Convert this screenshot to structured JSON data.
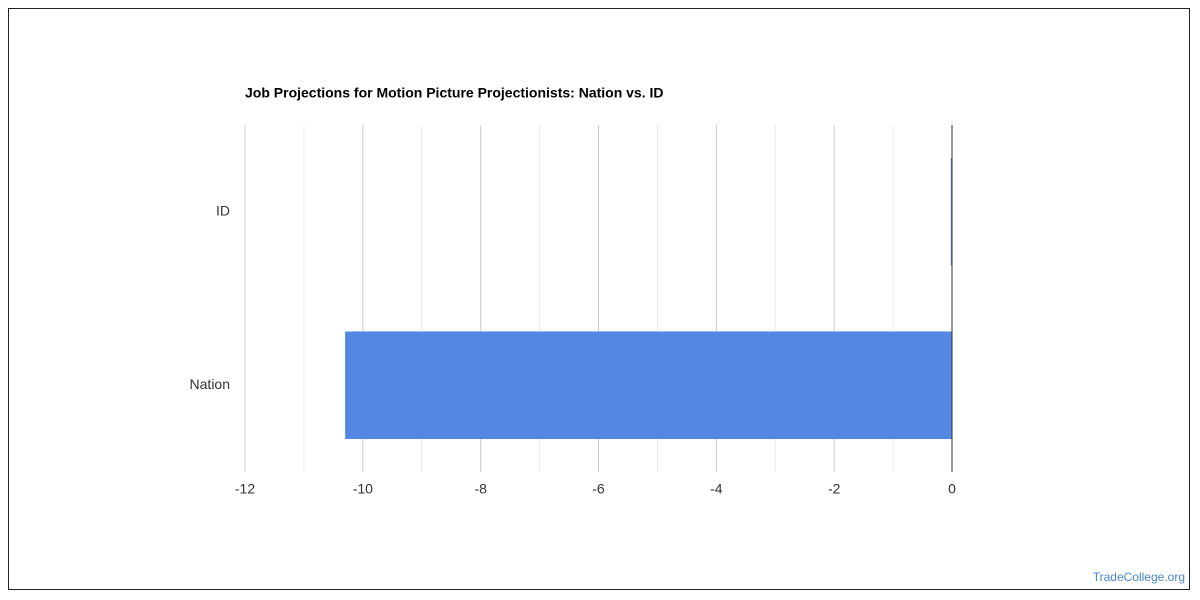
{
  "chart_data": {
    "type": "barh",
    "title": "Job Projections for Motion Picture Projectionists: Nation vs. ID",
    "categories": [
      "ID",
      "Nation"
    ],
    "values": [
      -0.02,
      -10.3
    ],
    "color": "#5387e3",
    "xlim": [
      -12,
      0
    ],
    "xticks": [
      -12,
      -10,
      -8,
      -6,
      -4,
      -2,
      0
    ],
    "grid": true,
    "source": "TradeCollege.org"
  }
}
